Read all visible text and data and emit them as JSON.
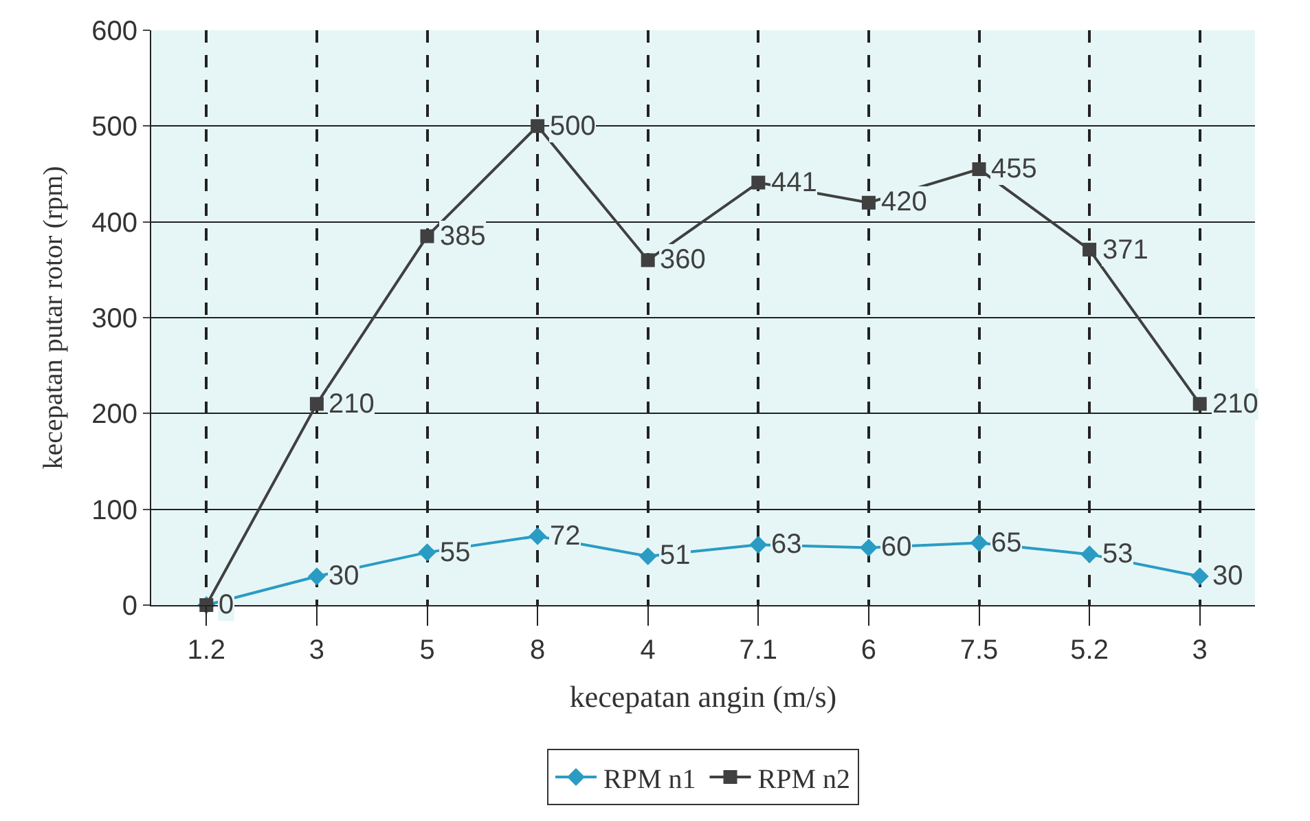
{
  "chart_data": {
    "type": "line",
    "xlabel": "kecepatan angin (m/s)",
    "ylabel": "kecepatan putar rotor (rpm)",
    "categories": [
      "1.2",
      "3",
      "5",
      "8",
      "4",
      "7.1",
      "6",
      "7.5",
      "5.2",
      "3"
    ],
    "series": [
      {
        "name": "RPM n1",
        "color": "#2a9cc4",
        "marker": "diamond",
        "values": [
          0,
          30,
          55,
          72,
          51,
          63,
          60,
          65,
          53,
          30
        ],
        "value_labels": [
          null,
          "30",
          "55",
          "72",
          "51",
          "63",
          "60",
          "65",
          "53",
          "30"
        ]
      },
      {
        "name": "RPM n2",
        "color": "#404040",
        "marker": "square",
        "values": [
          0,
          210,
          385,
          500,
          360,
          441,
          420,
          455,
          371,
          210
        ],
        "value_labels": [
          "0",
          "210",
          "385",
          "500",
          "360",
          "441",
          "420",
          "455",
          "371",
          "210"
        ]
      }
    ],
    "ylim": [
      0,
      600
    ],
    "yticks": [
      0,
      100,
      200,
      300,
      400,
      500,
      600
    ],
    "grid": true,
    "legend": "bottom"
  }
}
